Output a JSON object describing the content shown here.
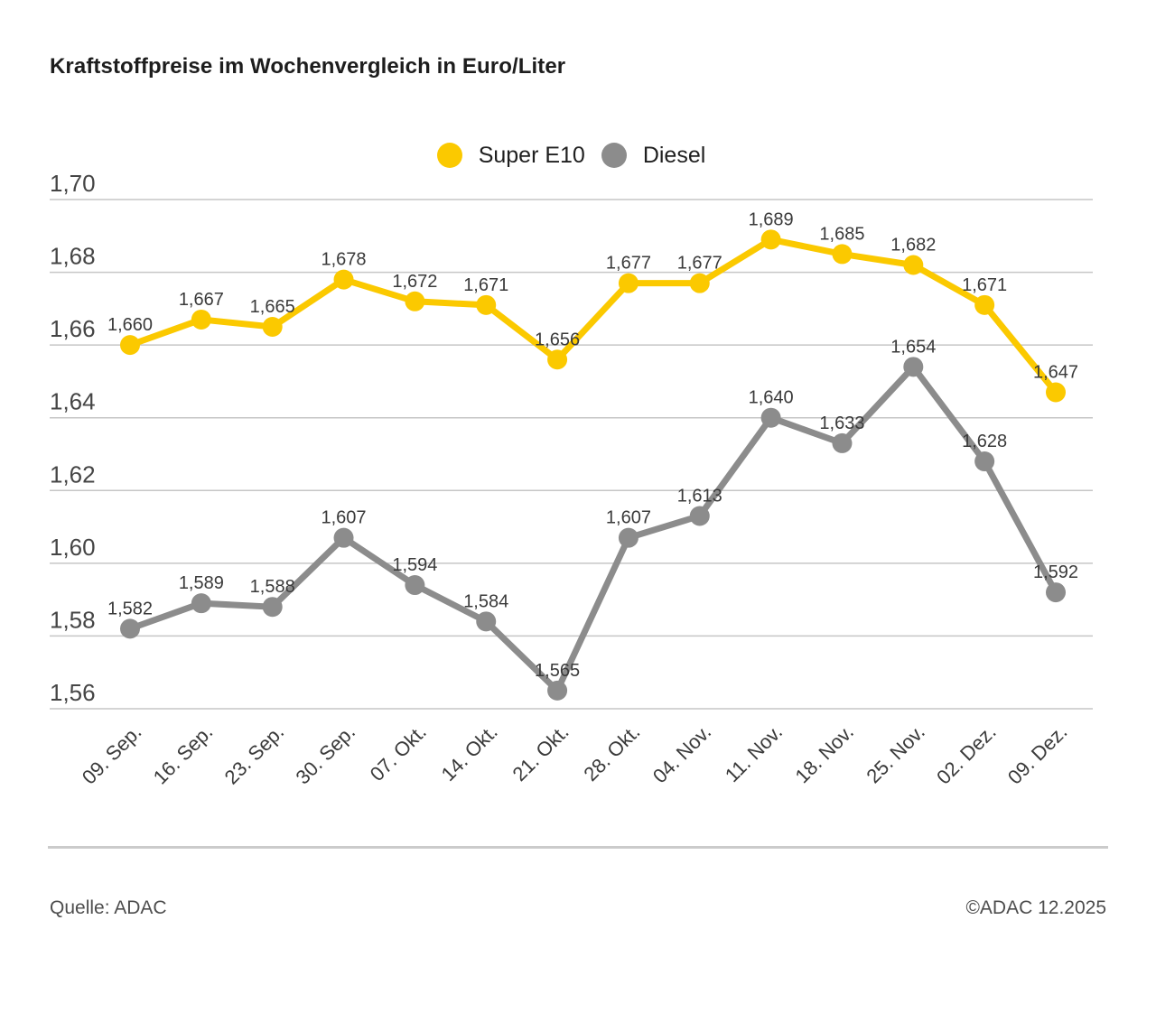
{
  "chart_data": {
    "type": "line",
    "title": "Kraftstoffpreise im Wochenvergleich in Euro/Liter",
    "categories": [
      "09. Sep.",
      "16. Sep.",
      "23. Sep.",
      "30. Sep.",
      "07. Okt.",
      "14. Okt.",
      "21. Okt.",
      "28. Okt.",
      "04. Nov.",
      "11. Nov.",
      "18. Nov.",
      "25. Nov.",
      "02. Dez.",
      "09. Dez."
    ],
    "series": [
      {
        "name": "Super E10",
        "color": "#FBC900",
        "values": [
          1.66,
          1.667,
          1.665,
          1.678,
          1.672,
          1.671,
          1.656,
          1.677,
          1.677,
          1.689,
          1.685,
          1.682,
          1.671,
          1.647
        ]
      },
      {
        "name": "Diesel",
        "color": "#8C8C8C",
        "values": [
          1.582,
          1.589,
          1.588,
          1.607,
          1.594,
          1.584,
          1.565,
          1.607,
          1.613,
          1.64,
          1.633,
          1.654,
          1.628,
          1.592
        ]
      }
    ],
    "xlabel": "",
    "ylabel": "",
    "ylim": [
      1.56,
      1.7
    ],
    "ytick_step": 0.02,
    "grid": true,
    "legend_position": "top",
    "value_labels": true,
    "decimal_separator": ","
  },
  "footer": {
    "source": "Quelle: ADAC",
    "copyright": "©ADAC 12.2025"
  },
  "colors": {
    "grid": "#C6C6C6",
    "tick_text": "#454545",
    "value_label_text": "#3A3A3A",
    "x_tick_text": "#3A3A3A"
  }
}
